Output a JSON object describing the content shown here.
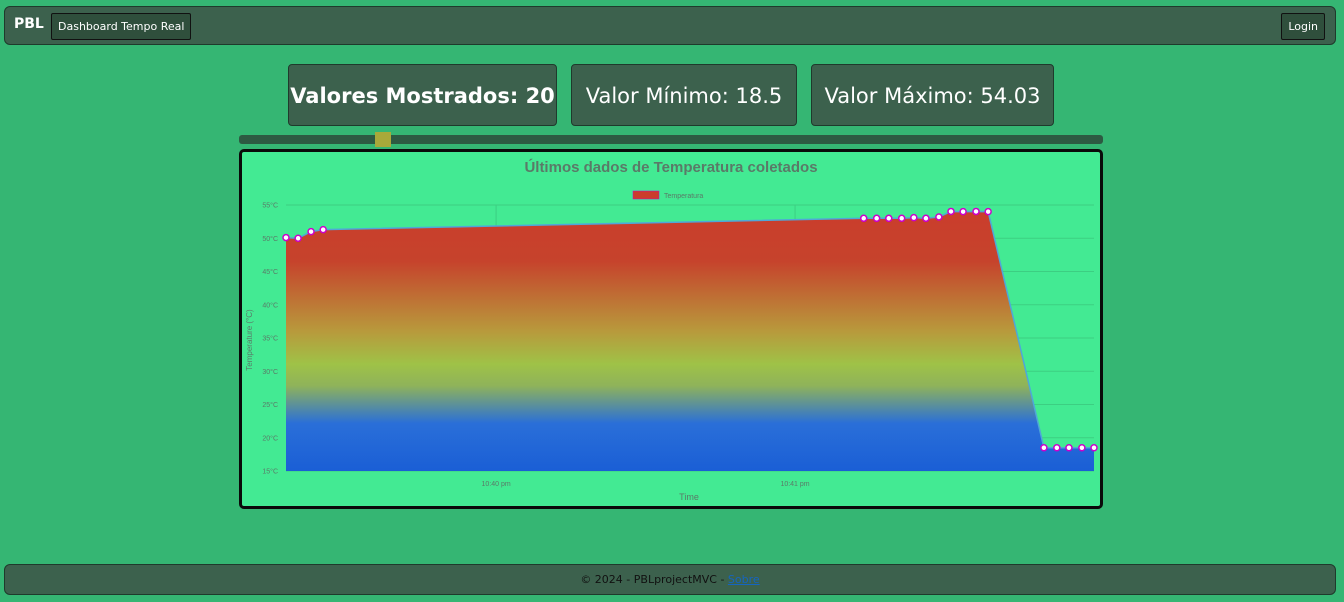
{
  "navbar": {
    "brand": "PBL",
    "dashboard_label": "Dashboard Tempo Real",
    "login_label": "Login"
  },
  "stats": {
    "shown": "Valores Mostrados: 20",
    "min": "Valor Mínimo: 18.5",
    "max": "Valor Máximo: 54.03"
  },
  "slider": {
    "value_fraction": 0.16
  },
  "footer": {
    "text": "© 2024 - PBLprojectMVC - ",
    "link": "Sobre"
  },
  "chart_data": {
    "type": "area",
    "title": "Últimos dados de Temperatura coletados",
    "xlabel": "Time",
    "ylabel": "Temperature (°C)",
    "ylim": [
      15,
      55
    ],
    "yticks": [
      "15°C",
      "20°C",
      "25°C",
      "30°C",
      "35°C",
      "40°C",
      "45°C",
      "50°C",
      "55°C"
    ],
    "xticks": [
      {
        "label": "10:40 pm",
        "t": 0.26
      },
      {
        "label": "10:41 pm",
        "t": 0.63
      }
    ],
    "legend": "top",
    "grid": true,
    "colors": {
      "line": "#4fa7d8",
      "point_fill": "#ffffff",
      "point_stroke": "#cc00cc"
    },
    "series": [
      {
        "name": "Temperatura",
        "points": [
          {
            "t": 0.0,
            "y": 50.1
          },
          {
            "t": 0.015,
            "y": 50.0
          },
          {
            "t": 0.031,
            "y": 51.0
          },
          {
            "t": 0.046,
            "y": 51.3
          },
          {
            "t": 0.715,
            "y": 53.0
          },
          {
            "t": 0.731,
            "y": 53.0
          },
          {
            "t": 0.746,
            "y": 53.0
          },
          {
            "t": 0.762,
            "y": 53.0
          },
          {
            "t": 0.777,
            "y": 53.1
          },
          {
            "t": 0.792,
            "y": 53.0
          },
          {
            "t": 0.808,
            "y": 53.2
          },
          {
            "t": 0.823,
            "y": 54.03
          },
          {
            "t": 0.838,
            "y": 54.0
          },
          {
            "t": 0.854,
            "y": 54.03
          },
          {
            "t": 0.869,
            "y": 54.0
          },
          {
            "t": 0.938,
            "y": 18.5
          },
          {
            "t": 0.954,
            "y": 18.5
          },
          {
            "t": 0.969,
            "y": 18.5
          },
          {
            "t": 0.985,
            "y": 18.5
          },
          {
            "t": 1.0,
            "y": 18.5
          }
        ]
      }
    ]
  }
}
